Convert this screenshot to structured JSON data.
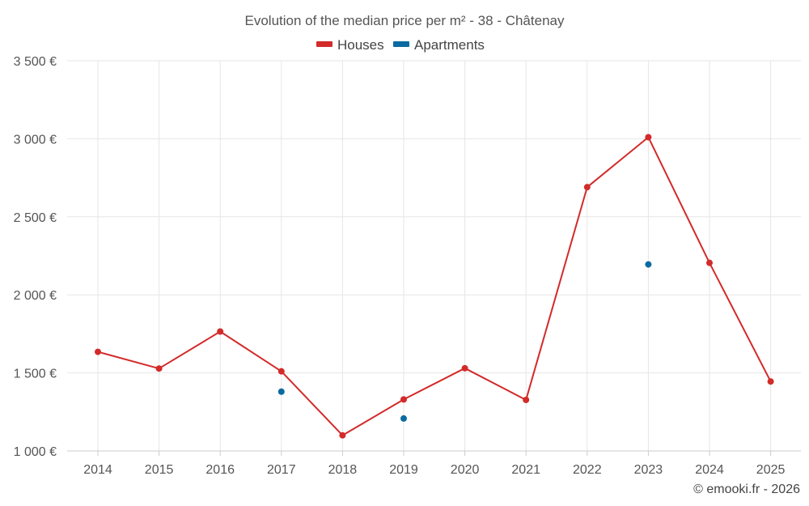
{
  "chart_data": {
    "type": "line",
    "title": "Evolution of the median price per m² - 38 - Châtenay",
    "categories": [
      "2014",
      "2015",
      "2016",
      "2017",
      "2018",
      "2019",
      "2020",
      "2021",
      "2022",
      "2023",
      "2024",
      "2025"
    ],
    "y_ticks": [
      "1 000 €",
      "1 500 €",
      "2 000 €",
      "2 500 €",
      "3 000 €",
      "3 500 €"
    ],
    "y_tick_values": [
      1000,
      1500,
      2000,
      2500,
      3000,
      3500
    ],
    "ylim": [
      1000,
      3500
    ],
    "grid": true,
    "legend_position": "top-center",
    "series": [
      {
        "name": "Houses",
        "color": "#d32a2a",
        "style": "line",
        "values": [
          1635,
          1528,
          1765,
          1510,
          1100,
          1330,
          1530,
          1327,
          2690,
          3010,
          2205,
          1445
        ]
      },
      {
        "name": "Apartments",
        "color": "#0b6aa2",
        "style": "points",
        "values": [
          null,
          null,
          null,
          1380,
          null,
          1208,
          null,
          null,
          null,
          2195,
          null,
          null
        ]
      }
    ],
    "credit": "© emooki.fr - 2026"
  }
}
